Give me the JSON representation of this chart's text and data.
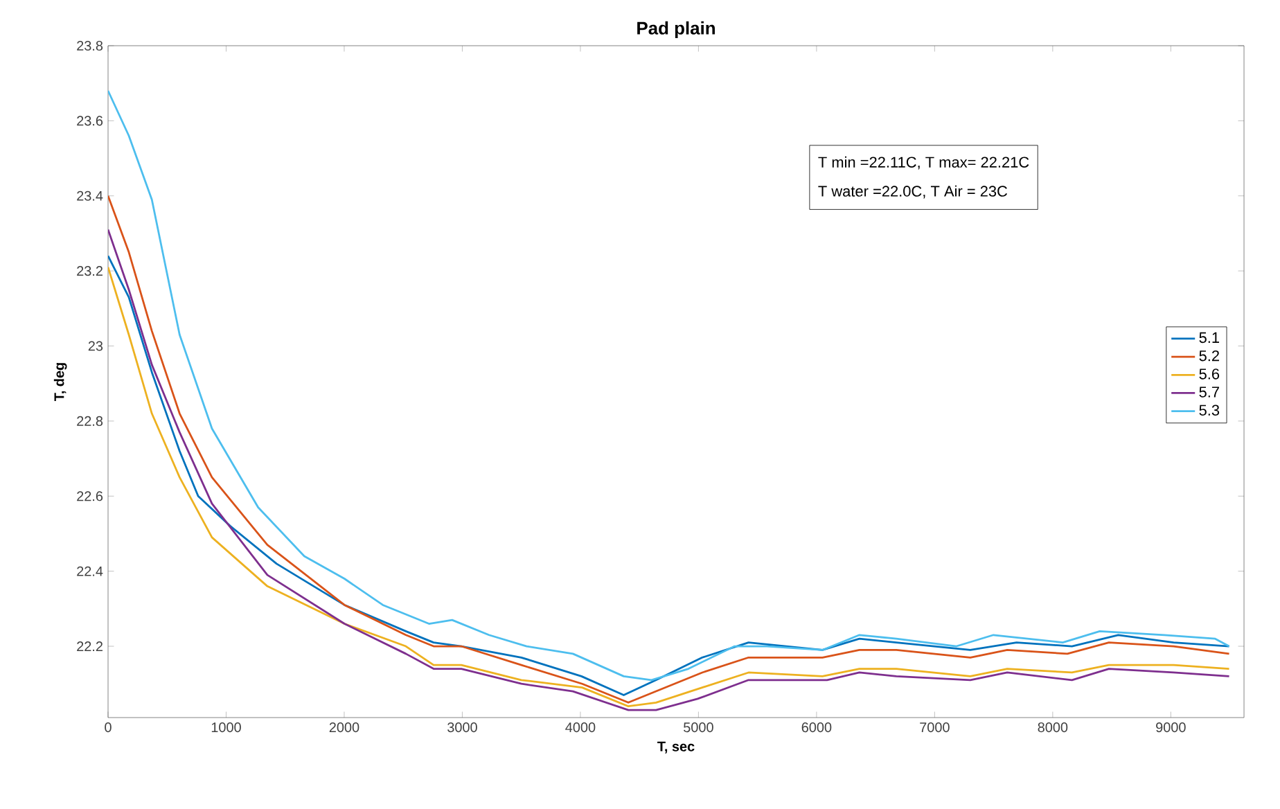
{
  "chart_data": {
    "type": "line",
    "title": "Pad plain",
    "xlabel": "T, sec",
    "ylabel": "T, deg",
    "annotations": [
      "T min =22.11C,  T max= 22.21C",
      "T water =22.0C, T Air = 23C"
    ],
    "xlim": [
      0,
      9620
    ],
    "ylim": [
      22.01,
      23.8
    ],
    "xticks": [
      0,
      1000,
      2000,
      3000,
      4000,
      5000,
      6000,
      7000,
      8000,
      9000
    ],
    "yticks": [
      22.2,
      22.4,
      22.6,
      22.8,
      23,
      23.2,
      23.4,
      23.6,
      23.8
    ],
    "legend": "right",
    "grid": false,
    "series": [
      {
        "name": "5.1",
        "color": "#0072bd",
        "x": [
          0,
          176,
          371,
          606,
          763,
          1036,
          1427,
          2002,
          2522,
          2757,
          2992,
          3500,
          4009,
          4367,
          4641,
          5032,
          5424,
          6050,
          6363,
          6676,
          7302,
          7694,
          8163,
          8555,
          9024,
          9494
        ],
        "values": [
          23.24,
          23.13,
          22.93,
          22.72,
          22.6,
          22.52,
          22.42,
          22.31,
          22.24,
          22.21,
          22.2,
          22.17,
          22.12,
          22.07,
          22.11,
          22.17,
          22.21,
          22.19,
          22.22,
          22.21,
          22.19,
          22.21,
          22.2,
          22.23,
          22.21,
          22.2
        ]
      },
      {
        "name": "5.2",
        "color": "#d95319",
        "x": [
          0,
          176,
          371,
          606,
          880,
          1349,
          2002,
          2522,
          2757,
          2992,
          3500,
          4015,
          4406,
          4641,
          5032,
          5424,
          6050,
          6363,
          6676,
          7302,
          7615,
          8124,
          8476,
          9024,
          9494
        ],
        "values": [
          23.4,
          23.25,
          23.04,
          22.82,
          22.65,
          22.47,
          22.31,
          22.23,
          22.2,
          22.2,
          22.15,
          22.1,
          22.05,
          22.08,
          22.13,
          22.17,
          22.17,
          22.19,
          22.19,
          22.17,
          22.19,
          22.18,
          22.21,
          22.2,
          22.18
        ]
      },
      {
        "name": "5.6",
        "color": "#edb120",
        "x": [
          0,
          176,
          371,
          606,
          880,
          1349,
          2002,
          2522,
          2757,
          2992,
          3500,
          4015,
          4406,
          4641,
          5032,
          5424,
          6050,
          6363,
          6676,
          7302,
          7615,
          8163,
          8476,
          9024,
          9494
        ],
        "values": [
          23.21,
          23.03,
          22.82,
          22.65,
          22.49,
          22.36,
          22.26,
          22.2,
          22.15,
          22.15,
          22.11,
          22.09,
          22.04,
          22.05,
          22.09,
          22.13,
          22.12,
          22.14,
          22.14,
          22.12,
          22.14,
          22.13,
          22.15,
          22.15,
          22.14
        ]
      },
      {
        "name": "5.7",
        "color": "#7e2f8e",
        "x": [
          0,
          176,
          371,
          606,
          880,
          1349,
          2002,
          2522,
          2757,
          2992,
          3500,
          3937,
          4406,
          4641,
          4993,
          5424,
          6089,
          6363,
          6676,
          7302,
          7615,
          8163,
          8476,
          9024,
          9494
        ],
        "values": [
          23.31,
          23.15,
          22.95,
          22.77,
          22.58,
          22.39,
          22.26,
          22.18,
          22.14,
          22.14,
          22.1,
          22.08,
          22.03,
          22.03,
          22.06,
          22.11,
          22.11,
          22.13,
          22.12,
          22.11,
          22.13,
          22.11,
          22.14,
          22.13,
          22.12
        ]
      },
      {
        "name": "5.3",
        "color": "#4dbeee",
        "x": [
          0,
          176,
          371,
          606,
          880,
          1271,
          1662,
          2002,
          2327,
          2718,
          2914,
          3226,
          3545,
          3937,
          4367,
          4602,
          4915,
          5306,
          5580,
          6050,
          6363,
          6676,
          7185,
          7498,
          8085,
          8398,
          8946,
          9376,
          9494
        ],
        "values": [
          23.68,
          23.56,
          23.39,
          23.03,
          22.78,
          22.57,
          22.44,
          22.38,
          22.31,
          22.26,
          22.27,
          22.23,
          22.2,
          22.18,
          22.12,
          22.11,
          22.14,
          22.2,
          22.2,
          22.19,
          22.23,
          22.22,
          22.2,
          22.23,
          22.21,
          22.24,
          22.23,
          22.22,
          22.2
        ]
      }
    ]
  }
}
